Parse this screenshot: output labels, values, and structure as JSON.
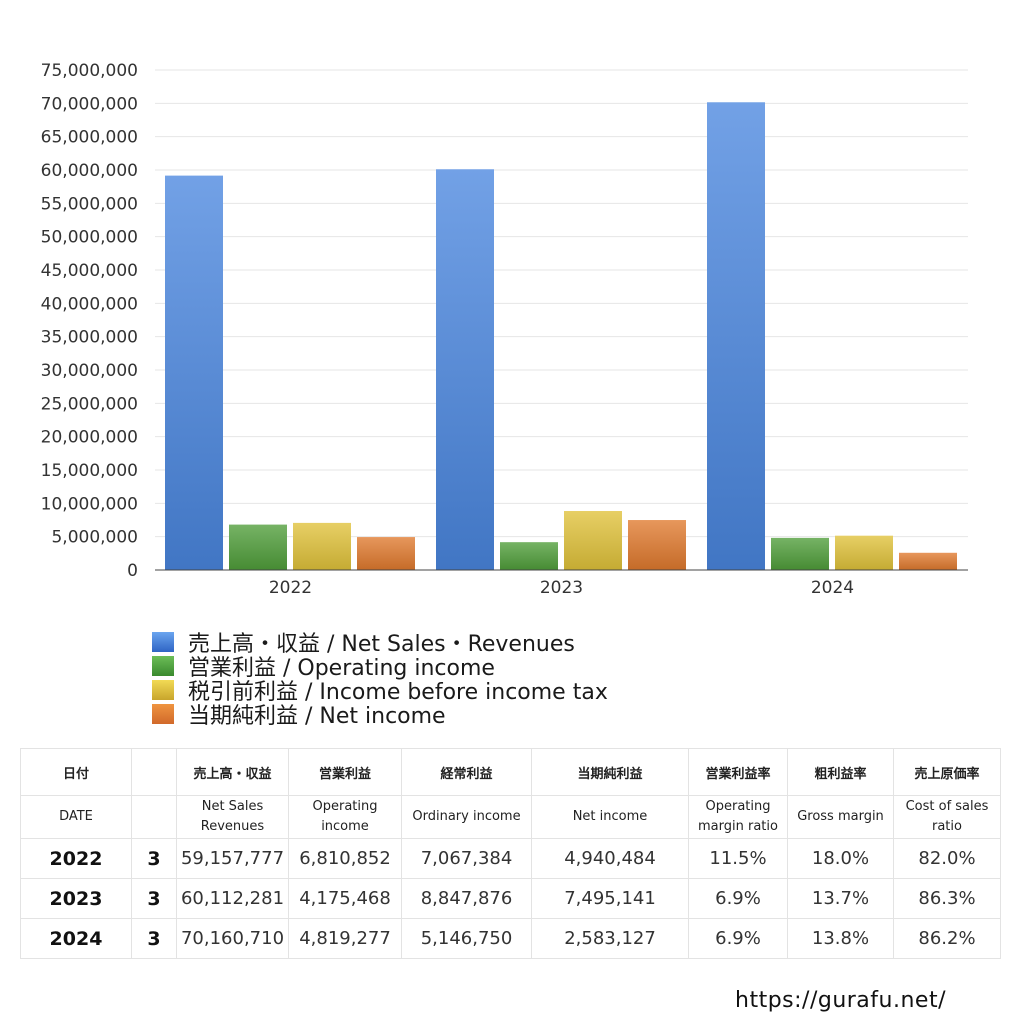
{
  "chart_data": {
    "type": "bar",
    "categories": [
      "2022",
      "2023",
      "2024"
    ],
    "series": [
      {
        "name": "売上高・収益 / Net Sales・Revenues",
        "values": [
          59157777,
          60112281,
          70160710
        ],
        "color": "#4a86df"
      },
      {
        "name": "営業利益 / Operating income",
        "values": [
          6810852,
          4175468,
          4819277
        ],
        "color": "#4f9e3a"
      },
      {
        "name": "税引前利益 / Income before income tax",
        "values": [
          7067384,
          8847876,
          5146750
        ],
        "color": "#e0c23a"
      },
      {
        "name": "当期純利益 / Net income",
        "values": [
          4940484,
          7495141,
          2583127
        ],
        "color": "#e07a2e"
      }
    ],
    "yticks": [
      "0",
      "5,000,000",
      "10,000,000",
      "15,000,000",
      "20,000,000",
      "25,000,000",
      "30,000,000",
      "35,000,000",
      "40,000,000",
      "45,000,000",
      "50,000,000",
      "55,000,000",
      "60,000,000",
      "65,000,000",
      "70,000,000",
      "75,000,000"
    ],
    "ylim": [
      0,
      75000000
    ],
    "grid": true,
    "legend_position": "bottom-left"
  },
  "table": {
    "header_jp": [
      "日付",
      "",
      "売上高・収益",
      "営業利益",
      "経常利益",
      "当期純利益",
      "営業利益率",
      "粗利益率",
      "売上原価率"
    ],
    "header_en": [
      {
        "line1": "DATE",
        "line2": ""
      },
      {
        "line1": "",
        "line2": ""
      },
      {
        "line1": "Net Sales",
        "line2": "Revenues"
      },
      {
        "line1": "Operating",
        "line2": "income"
      },
      {
        "line1": "Ordinary income",
        "line2": ""
      },
      {
        "line1": "Net income",
        "line2": ""
      },
      {
        "line1": "Operating",
        "line2": "margin ratio"
      },
      {
        "line1": "Gross margin",
        "line2": ""
      },
      {
        "line1": "Cost of sales",
        "line2": "ratio"
      }
    ],
    "rows": [
      [
        "2022",
        "3",
        "59,157,777",
        "6,810,852",
        "7,067,384",
        "4,940,484",
        "11.5%",
        "18.0%",
        "82.0%"
      ],
      [
        "2023",
        "3",
        "60,112,281",
        "4,175,468",
        "8,847,876",
        "7,495,141",
        "6.9%",
        "13.7%",
        "86.3%"
      ],
      [
        "2024",
        "3",
        "70,160,710",
        "4,819,277",
        "5,146,750",
        "2,583,127",
        "6.9%",
        "13.8%",
        "86.2%"
      ]
    ]
  },
  "footer": {
    "url_text": "https://gurafu.net/"
  }
}
